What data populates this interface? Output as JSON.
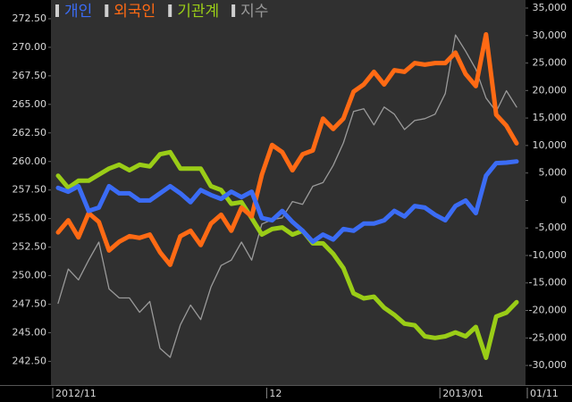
{
  "chart_data": {
    "type": "line",
    "categories": [
      "2012/11",
      null,
      null,
      null,
      null,
      null,
      null,
      null,
      null,
      null,
      null,
      null,
      null,
      null,
      null,
      null,
      null,
      null,
      null,
      null,
      null,
      "12",
      null,
      null,
      null,
      null,
      null,
      null,
      null,
      null,
      null,
      null,
      null,
      null,
      null,
      null,
      null,
      null,
      "2013/01",
      null,
      null,
      null,
      null,
      null,
      null,
      "01/11"
    ],
    "ylim": [
      240.5,
      273.75
    ],
    "yticks": [
      {
        "value": 242.5,
        "label": "242.50"
      },
      {
        "value": 245,
        "label": "245.00"
      },
      {
        "value": 247.5,
        "label": "247.50"
      },
      {
        "value": 250,
        "label": "250.00"
      },
      {
        "value": 252.5,
        "label": "252.50"
      },
      {
        "value": 255,
        "label": "255.00"
      },
      {
        "value": 257.5,
        "label": "257.50"
      },
      {
        "value": 260,
        "label": "260.00"
      },
      {
        "value": 262.5,
        "label": "262.50"
      },
      {
        "value": 265,
        "label": "265.00"
      },
      {
        "value": 267.5,
        "label": "267.50"
      },
      {
        "value": 270,
        "label": "270.00"
      },
      {
        "value": 272.5,
        "label": "272.50"
      }
    ],
    "y2lim": [
      -33400,
      35650
    ],
    "y2ticks": [
      {
        "value": -30000,
        "label": "-30,000"
      },
      {
        "value": -25000,
        "label": "-25,000"
      },
      {
        "value": -20000,
        "label": "-20,000"
      },
      {
        "value": -15000,
        "label": "-15,000"
      },
      {
        "value": -10000,
        "label": "-10,000"
      },
      {
        "value": -5000,
        "label": "-5,000"
      },
      0,
      {
        "value": 5000,
        "label": "5,000"
      },
      {
        "value": 10000,
        "label": "10,000"
      },
      {
        "value": 15000,
        "label": "15,000"
      },
      {
        "value": 20000,
        "label": "20,000"
      },
      {
        "value": 25000,
        "label": "25,000"
      },
      {
        "value": 30000,
        "label": "30,000"
      },
      {
        "value": 35000,
        "label": "35,000"
      }
    ],
    "grid": false,
    "series": [
      {
        "name": "개인",
        "color": "#3b6cf5",
        "axis": "y2",
        "values": [
          2300,
          1600,
          2600,
          -1900,
          -1300,
          2600,
          1300,
          1300,
          0,
          0,
          1300,
          2600,
          1300,
          -300,
          1900,
          1000,
          300,
          1600,
          600,
          1600,
          -3200,
          -3600,
          -1900,
          -3900,
          -5500,
          -7500,
          -6200,
          -7100,
          -5200,
          -5500,
          -4200,
          -4200,
          -3600,
          -1900,
          -2900,
          -1000,
          -1300,
          -2600,
          -3600,
          -1000,
          0,
          -2300,
          4500,
          6800,
          6900,
          7100
        ]
      },
      {
        "name": "외국인",
        "color": "#ff6a14",
        "axis": "y2",
        "values": [
          -5800,
          -3600,
          -6700,
          -2300,
          -3900,
          -9100,
          -7500,
          -6500,
          -6800,
          -6200,
          -9400,
          -11700,
          -6500,
          -5500,
          -8100,
          -4200,
          -2600,
          -5500,
          -1300,
          -2900,
          4700,
          10100,
          8800,
          5500,
          8400,
          9100,
          14900,
          13000,
          14900,
          19800,
          21100,
          23400,
          21100,
          23700,
          23400,
          25000,
          24700,
          25000,
          25000,
          26900,
          23000,
          20800,
          30200,
          15600,
          13600,
          10400
        ]
      },
      {
        "name": "기관계",
        "color": "#9acd17",
        "axis": "y2",
        "values": [
          4500,
          2300,
          3600,
          3600,
          4700,
          5800,
          6500,
          5500,
          6500,
          6200,
          8400,
          8800,
          5800,
          5800,
          5800,
          2600,
          1900,
          -600,
          -300,
          -3200,
          -6200,
          -5200,
          -4900,
          -6200,
          -5500,
          -7800,
          -7800,
          -9700,
          -12300,
          -16900,
          -17800,
          -17500,
          -19500,
          -20800,
          -22400,
          -22700,
          -24700,
          -25000,
          -24700,
          -24000,
          -24700,
          -23000,
          -28600,
          -21100,
          -20400,
          -18500
        ]
      },
      {
        "name": "지수",
        "color": "#9a9a9a",
        "values": [
          247.58,
          250.58,
          249.63,
          251.36,
          252.94,
          248.84,
          248.05,
          248.05,
          246.79,
          247.74,
          243.64,
          242.85,
          245.69,
          247.42,
          246.16,
          249.0,
          250.89,
          251.36,
          252.94,
          251.36,
          254.52,
          254.91,
          255.07,
          256.49,
          256.25,
          257.83,
          258.15,
          259.65,
          261.62,
          264.38,
          264.62,
          263.2,
          264.77,
          264.14,
          262.8,
          263.59,
          263.75,
          264.14,
          265.95,
          271.08,
          269.66,
          268.08,
          265.56,
          264.38,
          266.19,
          264.77
        ]
      }
    ]
  }
}
